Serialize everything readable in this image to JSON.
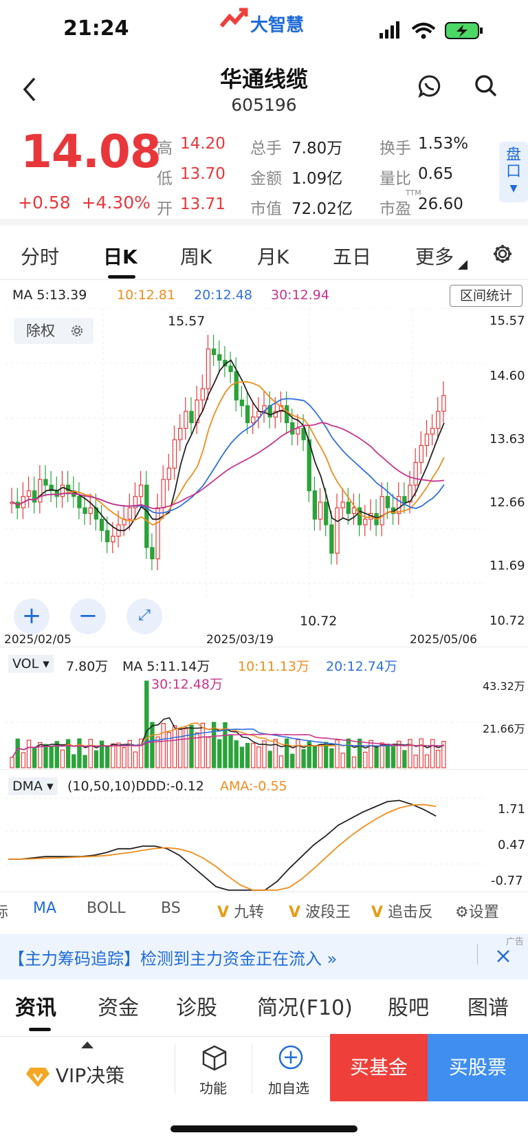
{
  "status": {
    "time": "21:24",
    "app_logo": "大智慧"
  },
  "header": {
    "title": "华通线缆",
    "code": "605196",
    "back_icon": "chevron-left-icon",
    "message_icon": "chat-icon",
    "search_icon": "search-icon"
  },
  "quote": {
    "price": "14.08",
    "change": "+0.58",
    "change_pct": "+4.30%",
    "fields": [
      {
        "k": "高",
        "v": "14.20",
        "red": true
      },
      {
        "k": "总手",
        "v": "7.80万"
      },
      {
        "k": "换手",
        "v": "1.53%"
      },
      {
        "k": "低",
        "v": "13.70",
        "red": true
      },
      {
        "k": "金额",
        "v": "1.09亿"
      },
      {
        "k": "量比",
        "v": "0.65"
      },
      {
        "k": "开",
        "v": "13.71",
        "red": true
      },
      {
        "k": "市值",
        "v": "72.02亿"
      },
      {
        "k": "市盈",
        "v": "26.60",
        "sup": "TTM"
      }
    ],
    "pankou": "盘口"
  },
  "tabs": [
    "分时",
    "日K",
    "周K",
    "月K",
    "五日",
    "更多"
  ],
  "tabs_active": 1,
  "ma_row": {
    "ma5": "MA 5:13.39",
    "ma10": "10:12.81",
    "ma20": "20:12.48",
    "ma30": "30:12.94",
    "range_stats": "区间统计"
  },
  "chart": {
    "adjust": "除权",
    "high_label": "15.57",
    "low_label": "10.72",
    "y_ticks": [
      "15.57",
      "14.60",
      "13.63",
      "12.66",
      "11.69",
      "10.72"
    ],
    "dates": [
      "2025/02/05",
      "2025/03/19",
      "2025/05/06"
    ]
  },
  "vol": {
    "label": "VOL",
    "value": "7.80万",
    "ma5": "MA 5:11.14万",
    "ma10": "10:11.13万",
    "ma20": "20:12.74万",
    "ma30": "30:12.48万",
    "ticks": [
      "43.32万",
      "21.66万"
    ]
  },
  "dma": {
    "label": "DMA",
    "params": "(10,50,10)DDD:-0.12",
    "ama": "AMA:-0.55",
    "ticks": [
      "1.71",
      "0.47",
      "-0.77"
    ]
  },
  "indicators": {
    "partial": "标",
    "items": [
      "MA",
      "BOLL",
      "BS"
    ],
    "v_items": [
      "九转",
      "波段王",
      "追击反"
    ],
    "settings": "设置"
  },
  "ad": {
    "text": "【主力筹码追踪】检测到主力资金正在流入",
    "tag": "广告"
  },
  "news_tabs": [
    "资讯",
    "资金",
    "诊股",
    "简况(F10)",
    "股吧",
    "图谱"
  ],
  "bottom": {
    "vip": "VIP决策",
    "func": "功能",
    "watch": "加自选",
    "buy_fund": "买基金",
    "buy_stock": "买股票"
  },
  "colors": {
    "up": "#e8373b",
    "down": "#2aa33a",
    "ma5": "#222222",
    "ma10": "#f08c1c",
    "ma20": "#2f6fe0",
    "ma30": "#c8338c"
  }
}
